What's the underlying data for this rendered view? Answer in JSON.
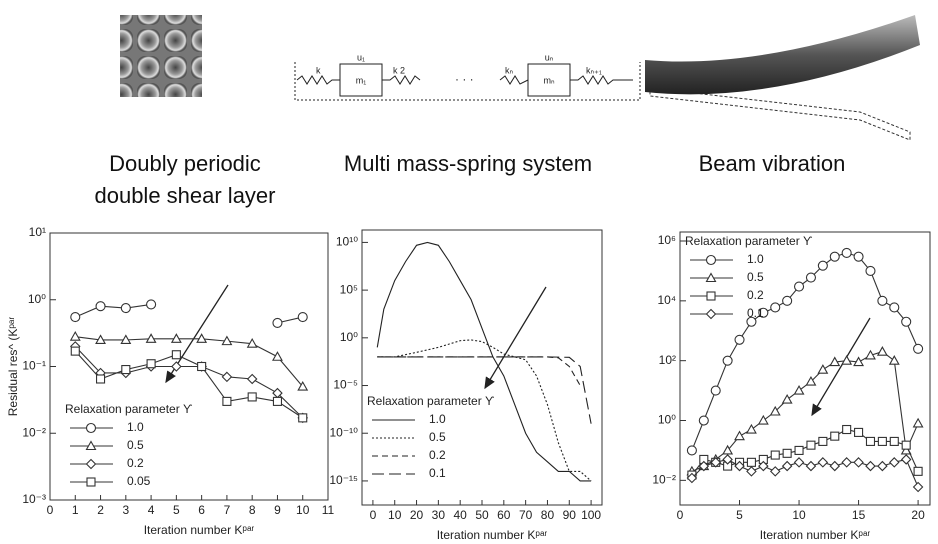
{
  "panels": [
    {
      "caption": [
        "Doubly periodic",
        "double shear layer"
      ]
    },
    {
      "caption": [
        "Multi mass-spring system"
      ],
      "labels": [
        "u₁",
        "m₁",
        "k",
        "k 2",
        "uₙ",
        "mₙ",
        "kₙ",
        "kₙ₊₁"
      ]
    },
    {
      "caption": [
        "Beam vibration"
      ]
    }
  ],
  "chart_data": [
    {
      "type": "line",
      "ylabel": "Residual res^ (Kᵖᵃʳ",
      "xlabel": "Iteration number Kᵖᵃʳ",
      "legend_title": "Relaxation parameter ϒ",
      "legend": "lower left",
      "log_y": true,
      "xlim": [
        0,
        11
      ],
      "xticks": [
        0,
        1,
        2,
        3,
        4,
        5,
        6,
        7,
        8,
        9,
        10,
        11
      ],
      "ylim": [
        0.001,
        10
      ],
      "yticks": [
        {
          "value": 0.001,
          "label": "10⁻³"
        },
        {
          "value": 0.01,
          "label": "10⁻²"
        },
        {
          "value": 0.1,
          "label": "10⁻¹"
        },
        {
          "value": 1,
          "label": "10⁰"
        },
        {
          "value": 10,
          "label": "10¹"
        }
      ],
      "x": [
        1,
        2,
        3,
        4,
        5,
        6,
        7,
        8,
        9,
        10
      ],
      "series": [
        {
          "name": "1.0",
          "color": "#333333",
          "marker": "circle",
          "values": [
            0.55,
            0.8,
            0.75,
            0.85,
            null,
            null,
            null,
            null,
            0.45,
            0.55
          ]
        },
        {
          "name": "0.5",
          "color": "#333333",
          "marker": "triangle",
          "values": [
            0.28,
            0.25,
            0.25,
            0.26,
            0.26,
            0.26,
            0.24,
            0.22,
            0.14,
            0.05
          ]
        },
        {
          "name": "0.2",
          "color": "#333333",
          "marker": "diamond",
          "values": [
            0.2,
            0.08,
            0.08,
            0.1,
            0.1,
            0.1,
            0.07,
            0.065,
            0.04,
            0.017
          ]
        },
        {
          "name": "0.05",
          "color": "#333333",
          "marker": "square",
          "values": [
            0.17,
            0.065,
            0.09,
            0.11,
            0.15,
            0.1,
            0.03,
            0.035,
            0.03,
            0.017
          ]
        }
      ]
    },
    {
      "type": "line",
      "xlabel": "Iteration number Kᵖᵃʳ",
      "legend_title": "Relaxation parameter ϒ",
      "legend": "lower left",
      "log_y": true,
      "xlim": [
        -5,
        105
      ],
      "xticks": [
        0,
        10,
        20,
        30,
        40,
        50,
        60,
        70,
        80,
        90,
        100
      ],
      "ylim": [
        3e-18,
        200000000000.0
      ],
      "yticks": [
        {
          "value": 1e-15,
          "label": "10⁻¹⁵"
        },
        {
          "value": 1e-10,
          "label": "10⁻¹⁰"
        },
        {
          "value": 1e-05,
          "label": "10⁻⁵"
        },
        {
          "value": 1,
          "label": "10⁰"
        },
        {
          "value": 100000.0,
          "label": "10⁵"
        },
        {
          "value": 10000000000.0,
          "label": "10¹⁰"
        }
      ],
      "series": [
        {
          "name": "1.0",
          "color": "#222222",
          "dash": "none",
          "x": [
            2,
            5,
            10,
            15,
            20,
            25,
            30,
            35,
            40,
            45,
            50,
            55,
            60,
            65,
            70,
            75,
            80,
            85,
            90,
            95,
            100
          ],
          "values": [
            0.1,
            1000,
            1000000.0,
            100000000.0,
            5000000000.0,
            10000000000.0,
            5000000000.0,
            100000000.0,
            1000000.0,
            10000.0,
            10,
            0.01,
            0.0001,
            1e-07,
            1e-10,
            1e-12,
            1e-13,
            1e-14,
            1e-14,
            1e-15,
            1e-15
          ]
        },
        {
          "name": "0.5",
          "color": "#222222",
          "dash": "2,2",
          "x": [
            2,
            10,
            20,
            30,
            40,
            45,
            50,
            55,
            60,
            65,
            70,
            75,
            80,
            85,
            90,
            95,
            100
          ],
          "values": [
            0.01,
            0.01,
            0.03,
            0.1,
            0.5,
            0.6,
            0.4,
            0.1,
            0.02,
            0.01,
            0.005,
            0.0001,
            1e-07,
            1e-11,
            1e-14,
            1e-14,
            1e-15
          ]
        },
        {
          "name": "0.2",
          "color": "#222222",
          "dash": "6,4",
          "x": [
            2,
            20,
            40,
            60,
            80,
            85,
            90,
            95
          ],
          "values": [
            0.01,
            0.01,
            0.01,
            0.01,
            0.01,
            0.008,
            0.001,
            1e-05
          ]
        },
        {
          "name": "0.1",
          "color": "#222222",
          "dash": "12,5",
          "x": [
            2,
            20,
            40,
            60,
            80,
            90,
            95,
            100
          ],
          "values": [
            0.01,
            0.01,
            0.01,
            0.01,
            0.01,
            0.009,
            0.001,
            1e-09
          ]
        }
      ]
    },
    {
      "type": "line",
      "xlabel": "Iteration number Kᵖᵃʳ",
      "legend_title": "Relaxation parameter ϒ",
      "legend": "upper left",
      "log_y": true,
      "xlim": [
        0,
        21
      ],
      "xticks": [
        0,
        5,
        10,
        15,
        20
      ],
      "ylim": [
        0.0015,
        2000000
      ],
      "yticks": [
        {
          "value": 0.01,
          "label": "10⁻²"
        },
        {
          "value": 1,
          "label": "10⁰"
        },
        {
          "value": 100,
          "label": "10²"
        },
        {
          "value": 10000,
          "label": "10⁴"
        },
        {
          "value": 1000000,
          "label": "10⁶"
        }
      ],
      "x": [
        1,
        2,
        3,
        4,
        5,
        6,
        7,
        8,
        9,
        10,
        11,
        12,
        13,
        14,
        15,
        16,
        17,
        18,
        19,
        20
      ],
      "series": [
        {
          "name": "1.0",
          "color": "#333333",
          "marker": "circle",
          "values": [
            0.1,
            1,
            10,
            100,
            500,
            2000,
            4000,
            6000,
            10000,
            30000,
            60000,
            150000,
            300000,
            400000,
            300000,
            100000,
            10000,
            6000,
            2000,
            250
          ]
        },
        {
          "name": "0.5",
          "color": "#333333",
          "marker": "triangle",
          "values": [
            0.02,
            0.03,
            0.05,
            0.1,
            0.3,
            0.5,
            1,
            2,
            5,
            10,
            20,
            50,
            90,
            100,
            90,
            150,
            200,
            100,
            0.1,
            0.8
          ]
        },
        {
          "name": "0.2",
          "color": "#333333",
          "marker": "square",
          "values": [
            0.015,
            0.05,
            0.04,
            0.03,
            0.04,
            0.04,
            0.05,
            0.07,
            0.08,
            0.1,
            0.15,
            0.2,
            0.3,
            0.5,
            0.4,
            0.2,
            0.2,
            0.2,
            0.15,
            0.02
          ]
        },
        {
          "name": "0.1",
          "color": "#333333",
          "marker": "diamond",
          "values": [
            0.012,
            0.03,
            0.04,
            0.05,
            0.03,
            0.02,
            0.03,
            0.02,
            0.03,
            0.04,
            0.03,
            0.04,
            0.03,
            0.04,
            0.04,
            0.03,
            0.03,
            0.04,
            0.05,
            0.006
          ]
        }
      ]
    }
  ]
}
